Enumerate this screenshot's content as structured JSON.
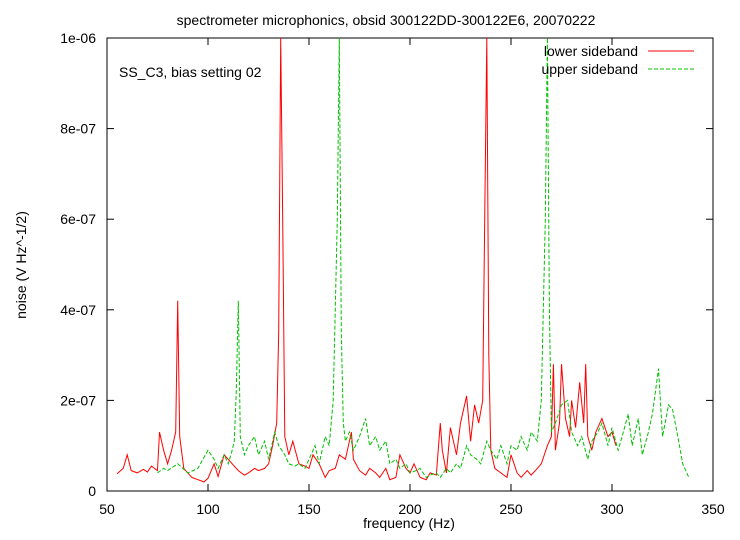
{
  "chart_data": {
    "type": "line",
    "title": "spectrometer microphonics, obsid 300122DD-300122E6, 20070222",
    "xlabel": "frequency (Hz)",
    "ylabel": "noise (V Hz^-1/2)",
    "xlim": [
      50,
      350
    ],
    "ylim": [
      0,
      1e-06
    ],
    "xticks": [
      50,
      100,
      150,
      200,
      250,
      300,
      350
    ],
    "xtick_labels": [
      "50",
      "100",
      "150",
      "200",
      "250",
      "300",
      "350"
    ],
    "yticks": [
      0,
      2e-07,
      4e-07,
      6e-07,
      8e-07,
      1e-06
    ],
    "ytick_labels": [
      "0",
      "2e-07",
      "4e-07",
      "6e-07",
      "8e-07",
      "1e-06"
    ],
    "annotation": "SS_C3, bias setting 02",
    "legend_position": "top-right",
    "grid": false,
    "series": [
      {
        "name": "lower sideband",
        "color": "#ff0000",
        "dash": "solid",
        "x": [
          55,
          58,
          60,
          62,
          65,
          68,
          70,
          72,
          75,
          76,
          78,
          80,
          82,
          84,
          85,
          86,
          88,
          90,
          92,
          95,
          98,
          100,
          103,
          105,
          108,
          110,
          112,
          115,
          118,
          120,
          123,
          125,
          128,
          130,
          132,
          134,
          135,
          136,
          137,
          138,
          140,
          142,
          145,
          148,
          150,
          152,
          155,
          158,
          160,
          163,
          165,
          168,
          170,
          171,
          172,
          175,
          178,
          180,
          183,
          185,
          188,
          190,
          193,
          195,
          198,
          200,
          202,
          205,
          208,
          210,
          213,
          215,
          216,
          218,
          220,
          223,
          225,
          228,
          230,
          232,
          234,
          236,
          237,
          238,
          239,
          240,
          242,
          245,
          248,
          250,
          253,
          255,
          258,
          260,
          263,
          265,
          268,
          270,
          271,
          272,
          274,
          275,
          277,
          279,
          280,
          282,
          284,
          286,
          287,
          288,
          290,
          292,
          295,
          298,
          300,
          302
        ],
        "y": [
          3.8e-08,
          5e-08,
          8e-08,
          4.5e-08,
          4e-08,
          4.8e-08,
          4.2e-08,
          5.5e-08,
          4.5e-08,
          1.3e-07,
          9e-08,
          6e-08,
          9e-08,
          1.3e-07,
          4.2e-07,
          1.2e-07,
          5e-08,
          4e-08,
          3e-08,
          2.5e-08,
          2e-08,
          2.8e-08,
          6e-08,
          3.2e-08,
          8e-08,
          7e-08,
          6e-08,
          4.5e-08,
          3.5e-08,
          4e-08,
          5e-08,
          4.5e-08,
          5e-08,
          6e-08,
          1e-07,
          1.5e-07,
          3.5e-07,
          1e-06,
          6e-07,
          1.2e-07,
          8e-08,
          1.1e-07,
          6e-08,
          5.5e-08,
          5e-08,
          8e-08,
          6e-08,
          3e-08,
          4.5e-08,
          5e-08,
          8e-08,
          7e-08,
          1.1e-07,
          1.3e-07,
          7e-08,
          4.5e-08,
          3.5e-08,
          5e-08,
          4e-08,
          3e-08,
          5e-08,
          2.5e-08,
          3e-08,
          8e-08,
          5e-08,
          4e-08,
          6e-08,
          3e-08,
          2.5e-08,
          4e-08,
          3.5e-08,
          1.5e-07,
          9e-08,
          4e-08,
          1.4e-07,
          8e-08,
          1.5e-07,
          2.1e-07,
          1.1e-07,
          1.9e-07,
          1.5e-07,
          2e-07,
          6e-07,
          1e-06,
          3e-07,
          9e-08,
          5e-08,
          4e-08,
          3e-08,
          8e-08,
          4e-08,
          3e-08,
          4.5e-08,
          3.5e-08,
          5e-08,
          6e-08,
          1e-07,
          1.2e-07,
          2.8e-07,
          9e-08,
          1.5e-07,
          2.8e-07,
          1.6e-07,
          1.2e-07,
          2e-07,
          1.4e-07,
          2.4e-07,
          1.5e-07,
          2.8e-07,
          1.2e-07,
          9e-08,
          1.3e-07,
          1.6e-07,
          1.2e-07,
          1.3e-07,
          1e-07
        ]
      },
      {
        "name": "upper sideband",
        "color": "#00c000",
        "dash": "dashed",
        "x": [
          75,
          78,
          80,
          85,
          90,
          95,
          100,
          103,
          105,
          108,
          110,
          112,
          113,
          114,
          115,
          116,
          118,
          120,
          123,
          125,
          128,
          130,
          133,
          135,
          138,
          140,
          143,
          145,
          148,
          150,
          153,
          155,
          158,
          160,
          162,
          164,
          165,
          166,
          167,
          168,
          170,
          172,
          175,
          178,
          180,
          183,
          185,
          188,
          190,
          193,
          195,
          198,
          200,
          203,
          205,
          208,
          210,
          213,
          215,
          218,
          220,
          223,
          225,
          228,
          230,
          233,
          235,
          238,
          240,
          243,
          245,
          248,
          250,
          253,
          255,
          258,
          260,
          263,
          265,
          267,
          268,
          269,
          270,
          272,
          275,
          278,
          280,
          283,
          285,
          288,
          290,
          293,
          295,
          298,
          300,
          303,
          305,
          308,
          310,
          313,
          315,
          318,
          320,
          323,
          325,
          328,
          330,
          333,
          335,
          338
        ],
        "y": [
          4e-08,
          5e-08,
          4.5e-08,
          6e-08,
          4e-08,
          5e-08,
          9e-08,
          7e-08,
          5e-08,
          8e-08,
          6e-08,
          9e-08,
          1.1e-07,
          2.2e-07,
          4.2e-07,
          1.2e-07,
          8e-08,
          1e-07,
          1.2e-07,
          8e-08,
          1.1e-07,
          7e-08,
          1.3e-07,
          1e-07,
          8e-08,
          6e-08,
          5.5e-08,
          6e-08,
          5e-08,
          7e-08,
          1e-07,
          6e-08,
          1.2e-07,
          1e-07,
          2e-07,
          6e-07,
          1e-06,
          3.5e-07,
          1.5e-07,
          1.1e-07,
          1.3e-07,
          9e-08,
          1.2e-07,
          1.6e-07,
          1e-07,
          1.2e-07,
          9e-08,
          1.1e-07,
          6e-08,
          7e-08,
          5e-08,
          6e-08,
          4e-08,
          4.5e-08,
          5e-08,
          3e-08,
          3.5e-08,
          4e-08,
          3e-08,
          5e-08,
          4e-08,
          6e-08,
          5e-08,
          1e-07,
          8e-08,
          7e-08,
          6e-08,
          1.1e-07,
          9e-08,
          7e-08,
          1e-07,
          6e-08,
          1e-07,
          9e-08,
          1.2e-07,
          9e-08,
          1.3e-07,
          1.1e-07,
          2e-07,
          6e-07,
          1e-06,
          4e-07,
          1.3e-07,
          1.5e-07,
          1.9e-07,
          2e-07,
          1.3e-07,
          1e-07,
          1.2e-07,
          7e-08,
          1.1e-07,
          1.3e-07,
          1.5e-07,
          1e-07,
          1.4e-07,
          9e-08,
          1.2e-07,
          1.7e-07,
          1e-07,
          1.6e-07,
          8e-08,
          1.3e-07,
          1.7e-07,
          2.7e-07,
          1.2e-07,
          1.9e-07,
          1.8e-07,
          1.1e-07,
          6e-08,
          3e-08
        ]
      }
    ]
  }
}
